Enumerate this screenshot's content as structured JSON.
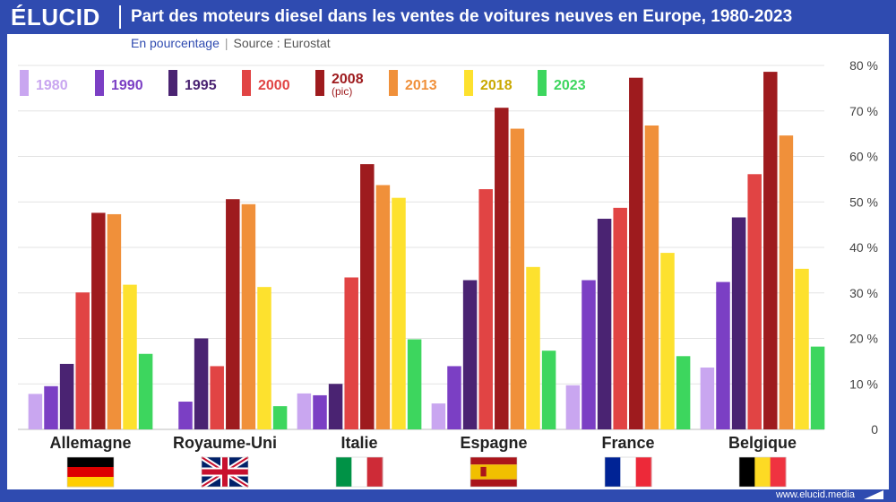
{
  "header": {
    "logo": "ÉLUCID",
    "title": "Part des moteurs diesel dans les ventes de voitures neuves en Europe, 1980-2023"
  },
  "subtitle": {
    "unit": "En pourcentage",
    "separator": "|",
    "source": "Source : Eurostat"
  },
  "footer": {
    "url": "www.elucid.media"
  },
  "chart_data": {
    "type": "bar",
    "categories": [
      "Allemagne",
      "Royaume-Uni",
      "Italie",
      "Espagne",
      "France",
      "Belgique"
    ],
    "series": [
      {
        "name": "1980",
        "color": "#c9a6f0",
        "values": [
          7.8,
          null,
          7.9,
          5.7,
          9.7,
          13.6
        ]
      },
      {
        "name": "1990",
        "color": "#7b3fc4",
        "values": [
          9.5,
          6.1,
          7.5,
          13.9,
          32.8,
          32.4
        ]
      },
      {
        "name": "1995",
        "color": "#4a2372",
        "values": [
          14.4,
          20.0,
          10.0,
          32.8,
          46.3,
          46.6
        ]
      },
      {
        "name": "2000",
        "color": "#e14444",
        "values": [
          30.1,
          13.9,
          33.4,
          52.8,
          48.7,
          56.1
        ]
      },
      {
        "name": "2008",
        "sublabel": "(pic)",
        "color": "#9e1b1e",
        "values": [
          47.6,
          50.6,
          58.3,
          70.7,
          77.3,
          78.6
        ]
      },
      {
        "name": "2013",
        "color": "#f0903a",
        "values": [
          47.3,
          49.5,
          53.7,
          66.1,
          66.8,
          64.6
        ]
      },
      {
        "name": "2018",
        "color": "#fde12e",
        "values": [
          31.8,
          31.3,
          50.9,
          35.7,
          38.8,
          35.3
        ]
      },
      {
        "name": "2023",
        "color": "#3dd65e",
        "values": [
          16.6,
          5.1,
          19.8,
          17.3,
          16.1,
          18.2
        ]
      }
    ],
    "legend_label_colors": [
      "#c9a6f0",
      "#7b3fc4",
      "#4a2372",
      "#e14444",
      "#9e1b1e",
      "#f0903a",
      "#c9a800",
      "#3dd65e"
    ],
    "ylim": [
      0,
      80
    ],
    "yticks": [
      0,
      10,
      20,
      30,
      40,
      50,
      60,
      70,
      80
    ],
    "ytick_labels": [
      "0",
      "10 %",
      "20 %",
      "30 %",
      "40 %",
      "50 %",
      "60 %",
      "70 %",
      "80 %"
    ],
    "grid": true,
    "legend_position": "top-left",
    "flags": [
      {
        "country": "Allemagne",
        "kind": "horizontal",
        "colors": [
          "#000000",
          "#dd0000",
          "#ffce00"
        ]
      },
      {
        "country": "Royaume-Uni",
        "kind": "union-jack",
        "colors": [
          "#012169",
          "#ffffff",
          "#c8102e"
        ]
      },
      {
        "country": "Italie",
        "kind": "vertical",
        "colors": [
          "#009246",
          "#ffffff",
          "#ce2b37"
        ]
      },
      {
        "country": "Espagne",
        "kind": "spain",
        "colors": [
          "#aa151b",
          "#f1bf00",
          "#aa151b"
        ]
      },
      {
        "country": "France",
        "kind": "vertical",
        "colors": [
          "#002395",
          "#ffffff",
          "#ed2939"
        ]
      },
      {
        "country": "Belgique",
        "kind": "vertical",
        "colors": [
          "#000000",
          "#fdda24",
          "#ef3340"
        ]
      }
    ]
  }
}
